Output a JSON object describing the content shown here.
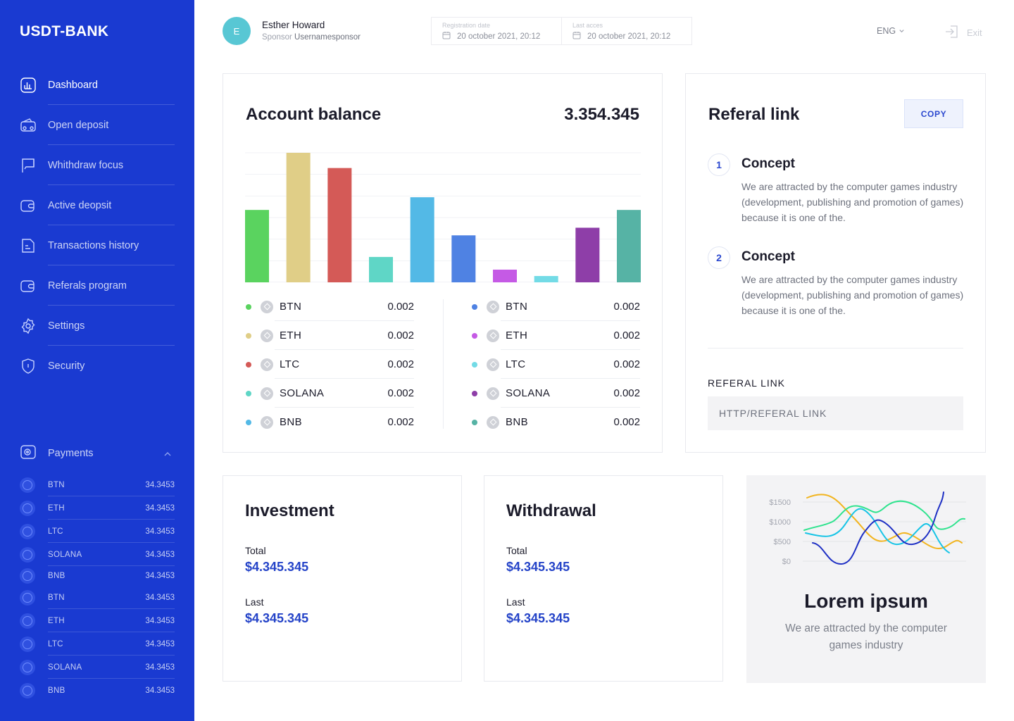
{
  "app": {
    "logo": "USDT-BANK"
  },
  "sidebar": {
    "items": [
      {
        "label": "Dashboard",
        "icon": "chart-icon",
        "active": true
      },
      {
        "label": "Open deposit",
        "icon": "wallet-icon"
      },
      {
        "label": "Whithdraw focus",
        "icon": "flag-icon"
      },
      {
        "label": "Active deopsit",
        "icon": "wallet-icon"
      },
      {
        "label": "Transactions history",
        "icon": "file-icon"
      },
      {
        "label": "Referals program",
        "icon": "wallet-icon"
      },
      {
        "label": "Settings",
        "icon": "gear-icon"
      },
      {
        "label": "Security",
        "icon": "shield-icon"
      }
    ],
    "payments": {
      "label": "Payments",
      "items": [
        {
          "name": "BTN",
          "value": "34.3453"
        },
        {
          "name": "ETH",
          "value": "34.3453"
        },
        {
          "name": "LTC",
          "value": "34.3453"
        },
        {
          "name": "SOLANA",
          "value": "34.3453"
        },
        {
          "name": "BNB",
          "value": "34.3453"
        },
        {
          "name": "BTN",
          "value": "34.3453"
        },
        {
          "name": "ETH",
          "value": "34.3453"
        },
        {
          "name": "LTC",
          "value": "34.3453"
        },
        {
          "name": "SOLANA",
          "value": "34.3453"
        },
        {
          "name": "BNB",
          "value": "34.3453"
        }
      ]
    }
  },
  "header": {
    "avatar_letter": "E",
    "user_name": "Esther Howard",
    "sponsor_label": "Sponsor",
    "sponsor_name": "Usernamesponsor",
    "registration_caption": "Registration date",
    "registration_value": "20 october 2021, 20:12",
    "last_access_caption": "Last acces",
    "last_access_value": "20 october 2021, 20:12",
    "language": "ENG",
    "exit_label": "Exit"
  },
  "balance": {
    "title": "Account balance",
    "total": "3.354.345"
  },
  "chart_data": {
    "type": "bar",
    "values": [
      57,
      102,
      90,
      20,
      67,
      37,
      10,
      5,
      43,
      57
    ],
    "colors": [
      "#5ad35f",
      "#e0ce87",
      "#d45a57",
      "#5fd6c6",
      "#53b9e6",
      "#4f82e3",
      "#c55ae5",
      "#73dbe6",
      "#8e3ea8",
      "#56b3a5"
    ],
    "ylim": [
      0,
      102
    ],
    "grid": true
  },
  "legend": {
    "left": [
      {
        "name": "BTN",
        "value": "0.002",
        "color": "#5ad35f"
      },
      {
        "name": "ETH",
        "value": "0.002",
        "color": "#e0ce87"
      },
      {
        "name": "LTC",
        "value": "0.002",
        "color": "#d45a57"
      },
      {
        "name": "SOLANA",
        "value": "0.002",
        "color": "#5fd6c6"
      },
      {
        "name": "BNB",
        "value": "0.002",
        "color": "#53b9e6"
      }
    ],
    "right": [
      {
        "name": "BTN",
        "value": "0.002",
        "color": "#4f82e3"
      },
      {
        "name": "ETH",
        "value": "0.002",
        "color": "#c55ae5"
      },
      {
        "name": "LTC",
        "value": "0.002",
        "color": "#73dbe6"
      },
      {
        "name": "SOLANA",
        "value": "0.002",
        "color": "#8e3ea8"
      },
      {
        "name": "BNB",
        "value": "0.002",
        "color": "#56b3a5"
      }
    ]
  },
  "referral": {
    "title": "Referal link",
    "copy_label": "COPY",
    "concepts": [
      {
        "num": "1",
        "title": "Concept",
        "text": "We are attracted by the computer games industry (development, publishing and promotion of games) because it is one of the."
      },
      {
        "num": "2",
        "title": "Concept",
        "text": "We are attracted by the computer games industry (development, publishing and promotion of games) because it is one of the."
      }
    ],
    "link_label": "REFERAL LINK",
    "link_placeholder": "HTTP/REFERAL LINK"
  },
  "investment": {
    "title": "Investment",
    "total_label": "Total",
    "total_value": "$4.345.345",
    "last_label": "Last",
    "last_value": "$4.345.345"
  },
  "withdrawal": {
    "title": "Withdrawal",
    "total_label": "Total",
    "total_value": "$4.345.345",
    "last_label": "Last",
    "last_value": "$4.345.345"
  },
  "promo": {
    "title": "Lorem ipsum",
    "text": "We are attracted by the computer games industry",
    "axis_labels": [
      "$1500",
      "$1000",
      "$500",
      "$0"
    ],
    "line_colors": [
      "#f2b41e",
      "#2fe38e",
      "#17c4e6",
      "#1e2fc4"
    ]
  },
  "colors": {
    "sidebar": "#1a3ad1",
    "accent": "#2443c8"
  }
}
